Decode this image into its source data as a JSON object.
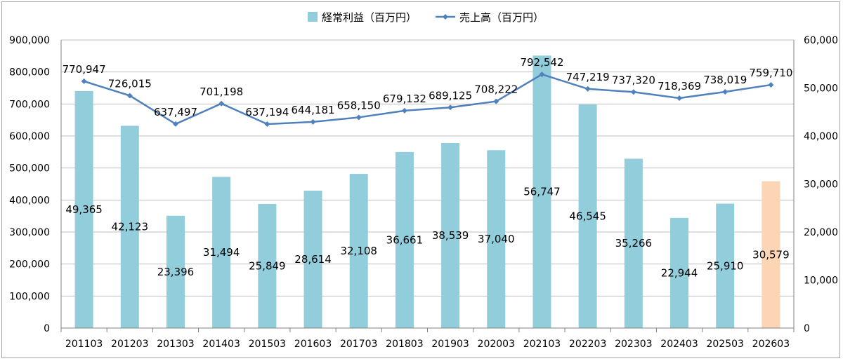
{
  "chart_data": {
    "type": "bar",
    "categories": [
      "201103",
      "201203",
      "201303",
      "201403",
      "201503",
      "201603",
      "201703",
      "201803",
      "201903",
      "202003",
      "202103",
      "202203",
      "202303",
      "202403",
      "202503",
      "202603"
    ],
    "series": [
      {
        "name": "経常利益（百万円）",
        "type": "bar",
        "axis": "right",
        "color": "#92cddc",
        "highlight_color": "#fcd5b4",
        "values": [
          49365,
          42123,
          23396,
          31494,
          25849,
          28614,
          32108,
          36661,
          38539,
          37040,
          56747,
          46545,
          35266,
          22944,
          25910,
          30579
        ],
        "labels": [
          "49,365",
          "42,123",
          "23,396",
          "31,494",
          "25,849",
          "28,614",
          "32,108",
          "36,661",
          "38,539",
          "37,040",
          "56,747",
          "46,545",
          "35,266",
          "22,944",
          "25,910",
          "30,579"
        ]
      },
      {
        "name": "売上高（百万円）",
        "type": "line",
        "axis": "left",
        "color": "#4f81bd",
        "values": [
          770947,
          726015,
          637497,
          701198,
          637194,
          644181,
          658150,
          679132,
          689125,
          708222,
          792542,
          747219,
          737320,
          718369,
          738019,
          759710
        ],
        "labels": [
          "770,947",
          "726,015",
          "637,497",
          "701,198",
          "637,194",
          "644,181",
          "658,150",
          "679,132",
          "689,125",
          "708,222",
          "792,542",
          "747,219",
          "737,320",
          "718,369",
          "738,019",
          "759,710"
        ]
      }
    ],
    "highlight_index": 15,
    "highlight_label_color": "#ff0000",
    "y_left": {
      "range": [
        0,
        900000
      ],
      "ticks": [
        "0",
        "100,000",
        "200,000",
        "300,000",
        "400,000",
        "500,000",
        "600,000",
        "700,000",
        "800,000",
        "900,000"
      ]
    },
    "y_right": {
      "range": [
        0,
        60000
      ],
      "ticks": [
        "0",
        "10,000",
        "20,000",
        "30,000",
        "40,000",
        "50,000",
        "60,000"
      ]
    },
    "grid": true,
    "legend": "top-center",
    "title": "",
    "xlabel": "",
    "ylabel": ""
  }
}
